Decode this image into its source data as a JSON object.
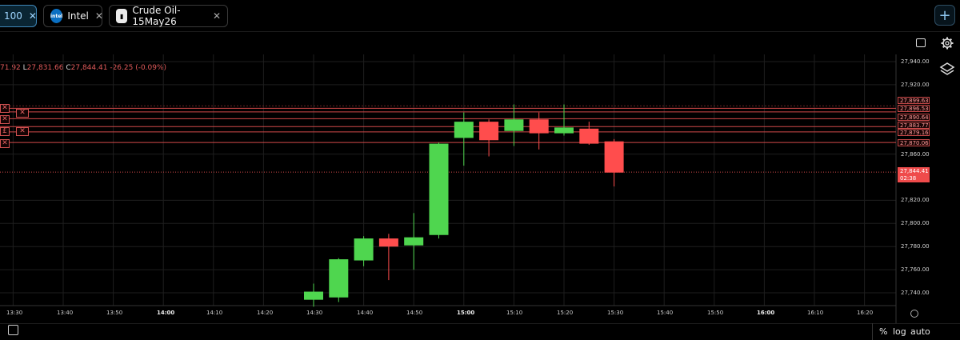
{
  "tabs": [
    {
      "label": "100",
      "active": true
    },
    {
      "label": "Intel",
      "icon": "intel-logo-icon",
      "active": false
    },
    {
      "label": "Crude Oil-15May26",
      "icon": "crude-oil-icon",
      "active": false
    }
  ],
  "tab_close_glyph": "✕",
  "new_tab_glyph": "+",
  "ohlc": {
    "h_value": "71.92",
    "l_label": "L",
    "l_value": "27,831.66",
    "c_label": "C",
    "c_value": "27,844.41",
    "change": "-26.25 (-0.09%)"
  },
  "price_axis": [
    "27,940.00",
    "27,920.00",
    "27,860.00",
    "27,820.00",
    "27,800.00",
    "27,780.00",
    "27,760.00",
    "27,740.00"
  ],
  "order_levels": [
    "27,899.63",
    "27,896.53",
    "27,890.64",
    "27,883.77",
    "27,879.16",
    "27,870.06"
  ],
  "last_price": {
    "value": "27,844.41",
    "countdown": "02:38"
  },
  "time_axis": [
    {
      "label": "13:30",
      "bold": false
    },
    {
      "label": "13:40",
      "bold": false
    },
    {
      "label": "13:50",
      "bold": false
    },
    {
      "label": "14:00",
      "bold": true
    },
    {
      "label": "14:10",
      "bold": false
    },
    {
      "label": "14:20",
      "bold": false
    },
    {
      "label": "14:30",
      "bold": false
    },
    {
      "label": "14:40",
      "bold": false
    },
    {
      "label": "14:50",
      "bold": false
    },
    {
      "label": "15:00",
      "bold": true
    },
    {
      "label": "15:10",
      "bold": false
    },
    {
      "label": "15:20",
      "bold": false
    },
    {
      "label": "15:30",
      "bold": false
    },
    {
      "label": "15:40",
      "bold": false
    },
    {
      "label": "15:50",
      "bold": false
    },
    {
      "label": "16:00",
      "bold": true
    },
    {
      "label": "16:10",
      "bold": false
    },
    {
      "label": "16:20",
      "bold": false
    }
  ],
  "bottom_options": {
    "percent": "%",
    "log": "log",
    "auto": "auto"
  },
  "colors": {
    "up": "#4fd64f",
    "down": "#ff4d4d",
    "grid": "#1e1e1e",
    "accent": "#3f86b8"
  },
  "chart_data": {
    "type": "candlestick",
    "interval_minutes": 5,
    "candles": [
      {
        "time": "14:30",
        "open": 27734,
        "high": 27748,
        "low": 27728,
        "close": 27741
      },
      {
        "time": "14:35",
        "open": 27736,
        "high": 27770,
        "low": 27732,
        "close": 27769
      },
      {
        "time": "14:40",
        "open": 27768,
        "high": 27789,
        "low": 27763,
        "close": 27787
      },
      {
        "time": "14:45",
        "open": 27787,
        "high": 27791,
        "low": 27751,
        "close": 27780
      },
      {
        "time": "14:50",
        "open": 27781,
        "high": 27809,
        "low": 27760,
        "close": 27788
      },
      {
        "time": "14:55",
        "open": 27790,
        "high": 27870,
        "low": 27787,
        "close": 27869
      },
      {
        "time": "15:00",
        "open": 27874,
        "high": 27896,
        "low": 27850,
        "close": 27888
      },
      {
        "time": "15:05",
        "open": 27888,
        "high": 27890,
        "low": 27858,
        "close": 27872
      },
      {
        "time": "15:10",
        "open": 27880,
        "high": 27903,
        "low": 27867,
        "close": 27890
      },
      {
        "time": "15:15",
        "open": 27890,
        "high": 27896,
        "low": 27864,
        "close": 27878
      },
      {
        "time": "15:20",
        "open": 27878,
        "high": 27903,
        "low": 27876,
        "close": 27883
      },
      {
        "time": "15:25",
        "open": 27882,
        "high": 27888,
        "low": 27868,
        "close": 27869
      },
      {
        "time": "15:30",
        "open": 27871,
        "high": 27873,
        "low": 27832,
        "close": 27844
      }
    ],
    "ylim": [
      27725,
      27950
    ]
  }
}
